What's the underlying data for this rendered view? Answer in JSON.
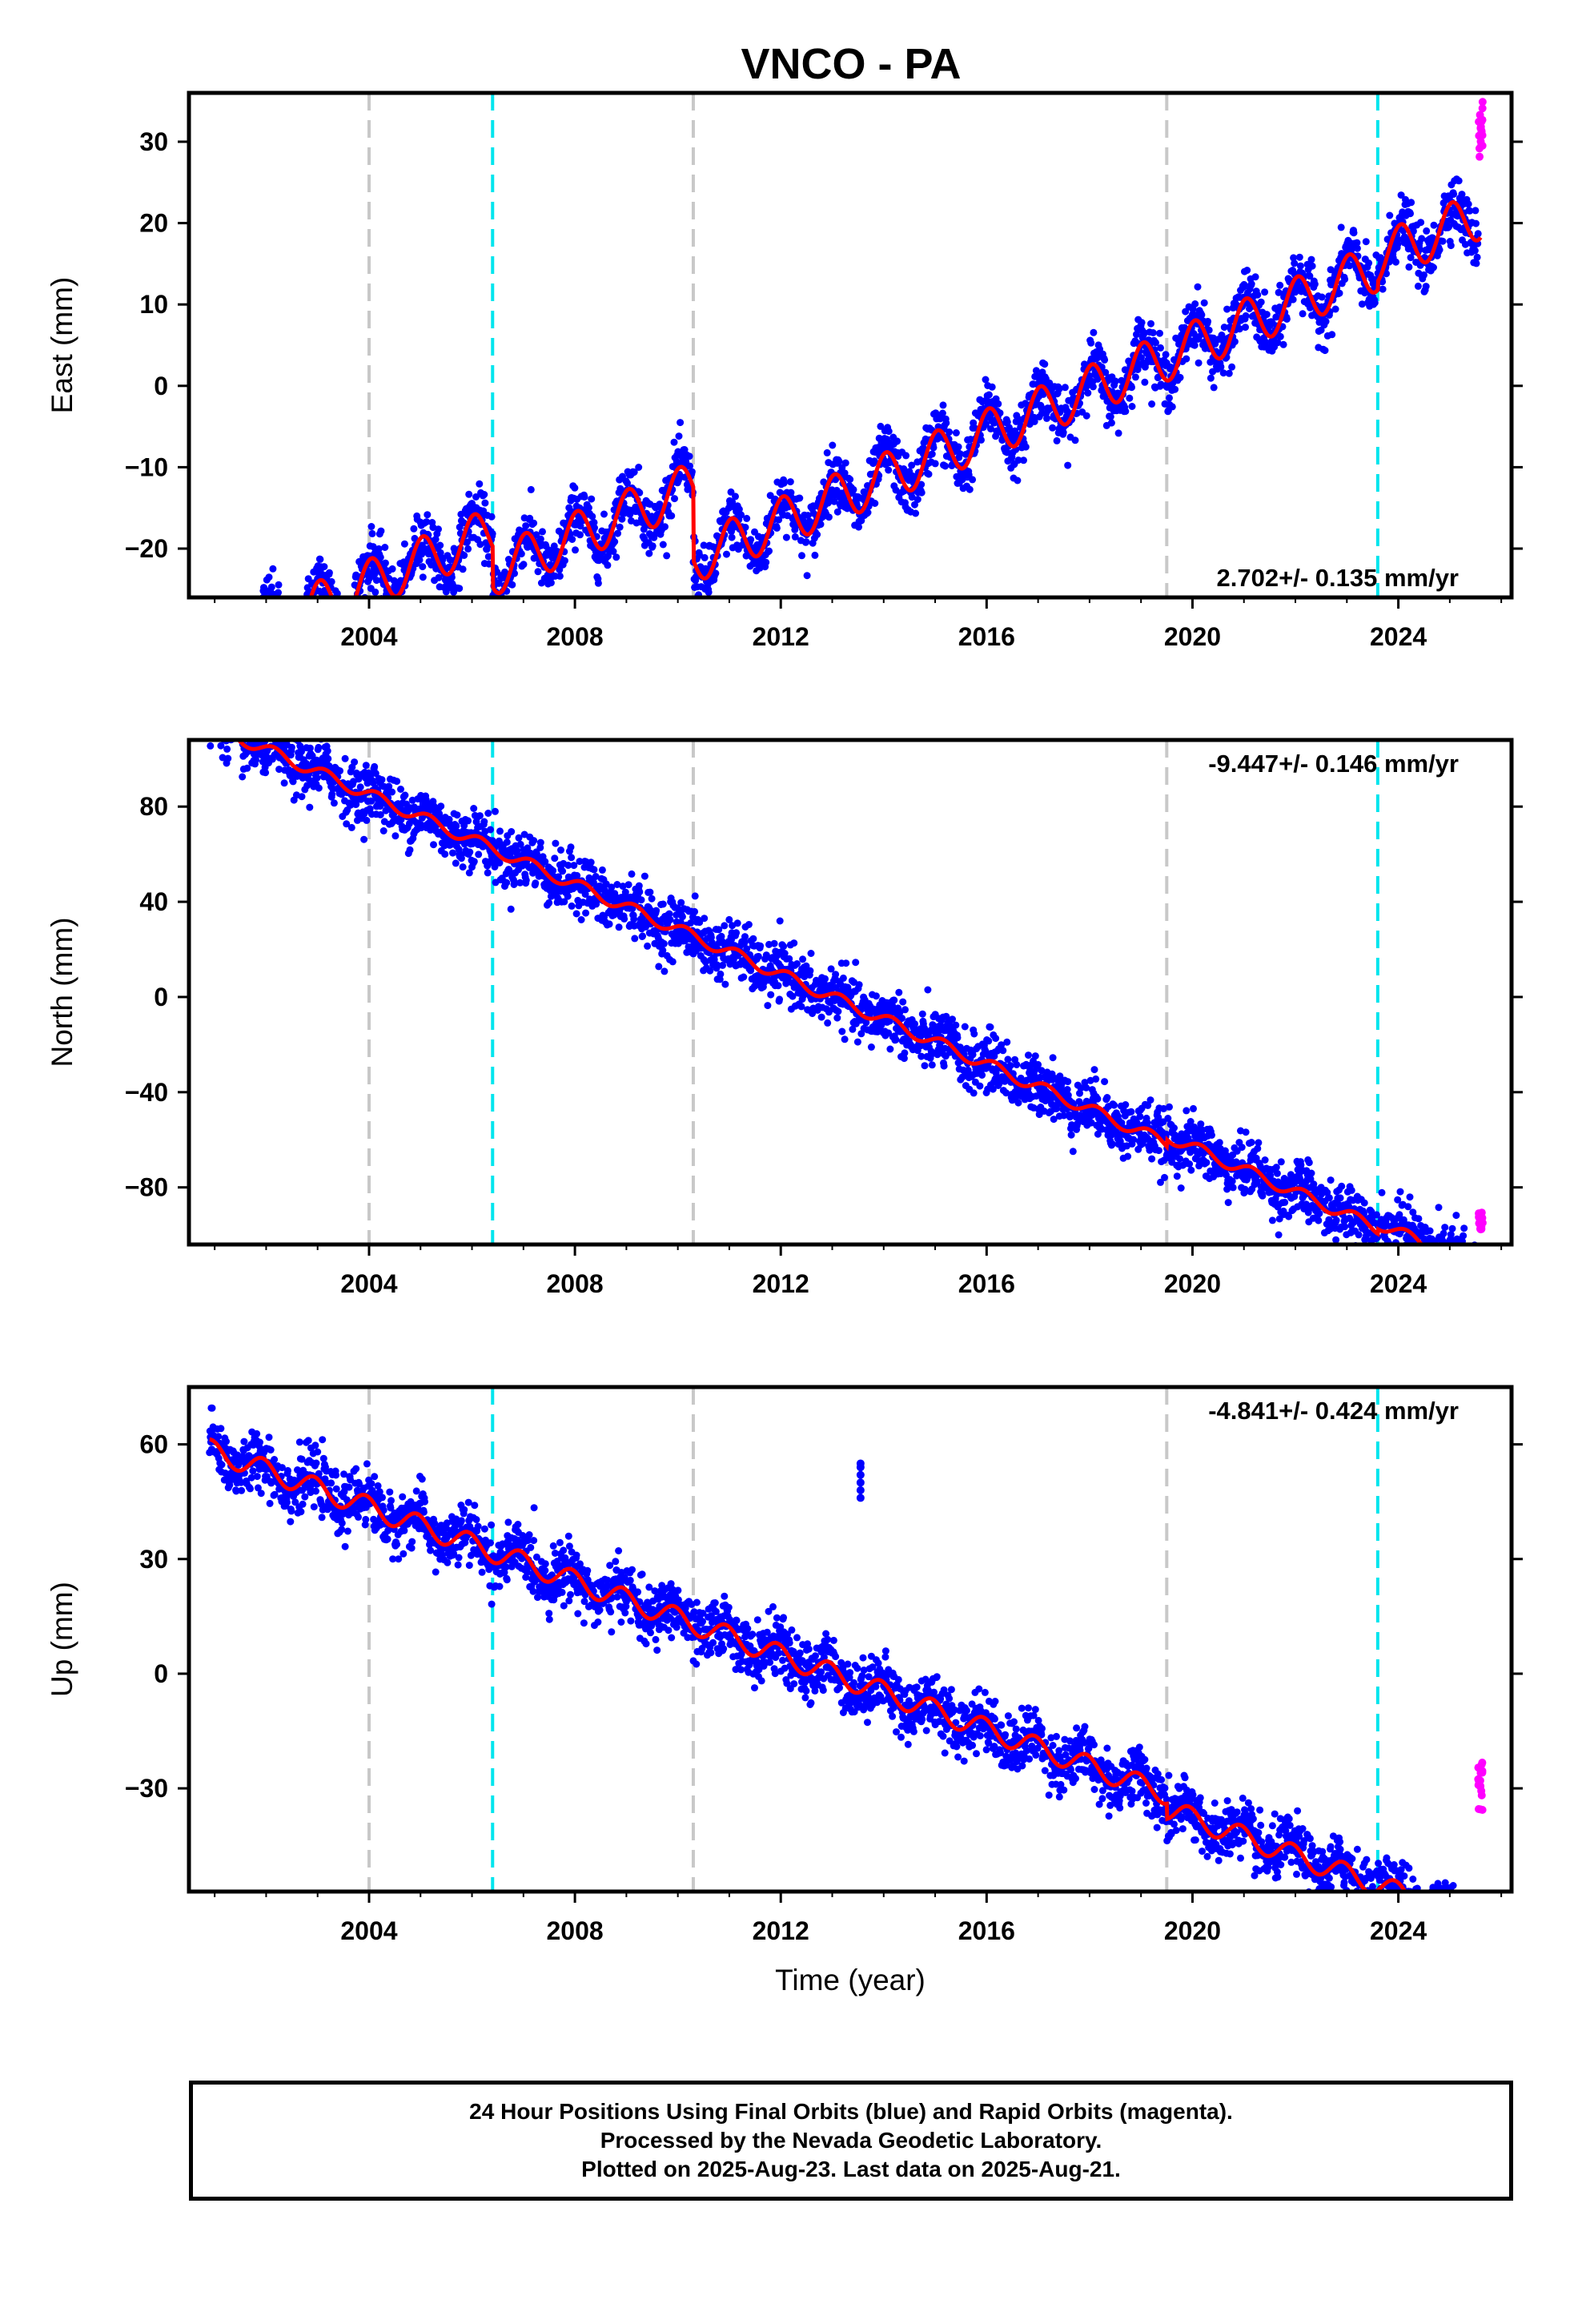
{
  "title": "VNCO - PA",
  "footer": {
    "line1": "24 Hour Positions Using Final Orbits (blue) and Rapid Orbits (magenta).",
    "line2": "Processed by the Nevada Geodetic Laboratory.",
    "line3": "Plotted on 2025-Aug-23. Last data on 2025-Aug-21."
  },
  "colors": {
    "final_orbits": "#0000ff",
    "rapid_orbits": "#ff00ff",
    "model_fit": "#ff0000",
    "equipment_change": "#c8c8c8",
    "earthquake": "#00e5ee"
  },
  "chart_data": [
    {
      "type": "scatter",
      "component": "east",
      "title": "VNCO - PA",
      "xlabel": "",
      "ylabel": "East (mm)",
      "xlim": [
        2000.5,
        2026.2
      ],
      "ylim": [
        -26,
        36
      ],
      "xticks": [
        2004,
        2008,
        2012,
        2016,
        2020,
        2024
      ],
      "yticks": [
        -20,
        -10,
        0,
        10,
        20,
        30
      ],
      "rate_label": "2.702+/- 0.135 mm/yr",
      "rate_position": "bottom-right",
      "gray_dashed_lines": [
        2004.0,
        2010.3,
        2019.5
      ],
      "cyan_dashed_lines": [
        2006.4,
        2023.6
      ],
      "model": {
        "start_year": 2000.9,
        "end_year": 2025.6,
        "ref_year": 2013.0,
        "ref_value": 0.0,
        "rate": 2.702,
        "rate_uncertainty": 0.135,
        "annual_amplitude": 3.0,
        "annual_phase": 1.3,
        "steps": [
          {
            "year": 2006.4,
            "value": -5.0
          },
          {
            "year": 2010.3,
            "value": -9.0
          },
          {
            "year": 2023.6,
            "value": 1.0
          }
        ],
        "rapid_orbits_span": [
          2025.55,
          2025.64
        ],
        "rapid_orbits_range": [
          28,
          35
        ]
      },
      "series": [
        {
          "name": "24 Hour Positions Using Final Orbits (blue)",
          "color": "#0000ff",
          "kind": "points"
        },
        {
          "name": "Rapid Orbits (magenta)",
          "color": "#ff00ff",
          "kind": "points"
        },
        {
          "name": "",
          "color": "#ff0000",
          "kind": "line"
        }
      ]
    },
    {
      "type": "scatter",
      "component": "north",
      "title": "",
      "xlabel": "",
      "ylabel": "North (mm)",
      "xlim": [
        2000.5,
        2026.2
      ],
      "ylim": [
        -104,
        108
      ],
      "xticks": [
        2004,
        2008,
        2012,
        2016,
        2020,
        2024
      ],
      "yticks": [
        -80,
        -40,
        0,
        40,
        80
      ],
      "rate_label": "-9.447+/- 0.146 mm/yr",
      "rate_position": "top-right",
      "gray_dashed_lines": [
        2004.0,
        2010.3,
        2019.5
      ],
      "cyan_dashed_lines": [
        2006.4,
        2023.6
      ],
      "model": {
        "start_year": 2000.9,
        "end_year": 2025.6,
        "ref_year": 2013.0,
        "ref_value": 0.0,
        "rate": -9.447,
        "rate_uncertainty": 0.146,
        "annual_amplitude": 2.5,
        "annual_phase": 0.6,
        "steps": [
          {
            "year": 2019.5,
            "value": 3.0
          },
          {
            "year": 2023.6,
            "value": 2.0
          }
        ],
        "rapid_orbits_span": [
          2025.55,
          2025.64
        ],
        "rapid_orbits_range": [
          -98,
          -89
        ]
      },
      "series": [
        {
          "name": "24 Hour Positions Using Final Orbits (blue)",
          "color": "#0000ff",
          "kind": "points"
        },
        {
          "name": "Rapid Orbits (magenta)",
          "color": "#ff00ff",
          "kind": "points"
        },
        {
          "name": "",
          "color": "#ff0000",
          "kind": "line"
        }
      ]
    },
    {
      "type": "scatter",
      "component": "up",
      "title": "",
      "xlabel": "Time (year)",
      "ylabel": "Up (mm)",
      "xlim": [
        2000.5,
        2026.2
      ],
      "ylim": [
        -57,
        75
      ],
      "xticks": [
        2004,
        2008,
        2012,
        2016,
        2020,
        2024
      ],
      "yticks": [
        -30,
        0,
        30,
        60
      ],
      "rate_label": "-4.841+/- 0.424 mm/yr",
      "rate_position": "top-right",
      "gray_dashed_lines": [
        2004.0,
        2010.3,
        2019.5
      ],
      "cyan_dashed_lines": [
        2006.4,
        2023.6
      ],
      "model": {
        "start_year": 2000.9,
        "end_year": 2025.6,
        "ref_year": 2013.0,
        "ref_value": 0.0,
        "rate": -4.841,
        "rate_uncertainty": 0.424,
        "annual_amplitude": 2.8,
        "annual_phase": 2.0,
        "steps": [
          {
            "year": 2019.5,
            "value": -4.0
          }
        ],
        "outliers": {
          "year": 2013.55,
          "values": [
            46,
            48,
            50,
            52,
            54,
            55
          ]
        },
        "rapid_orbits_span": [
          2025.55,
          2025.64
        ],
        "rapid_orbits_range": [
          -36,
          -21
        ]
      },
      "series": [
        {
          "name": "24 Hour Positions Using Final Orbits (blue)",
          "color": "#0000ff",
          "kind": "points"
        },
        {
          "name": "Rapid Orbits (magenta)",
          "color": "#ff00ff",
          "kind": "points"
        },
        {
          "name": "",
          "color": "#ff0000",
          "kind": "line"
        }
      ]
    }
  ]
}
